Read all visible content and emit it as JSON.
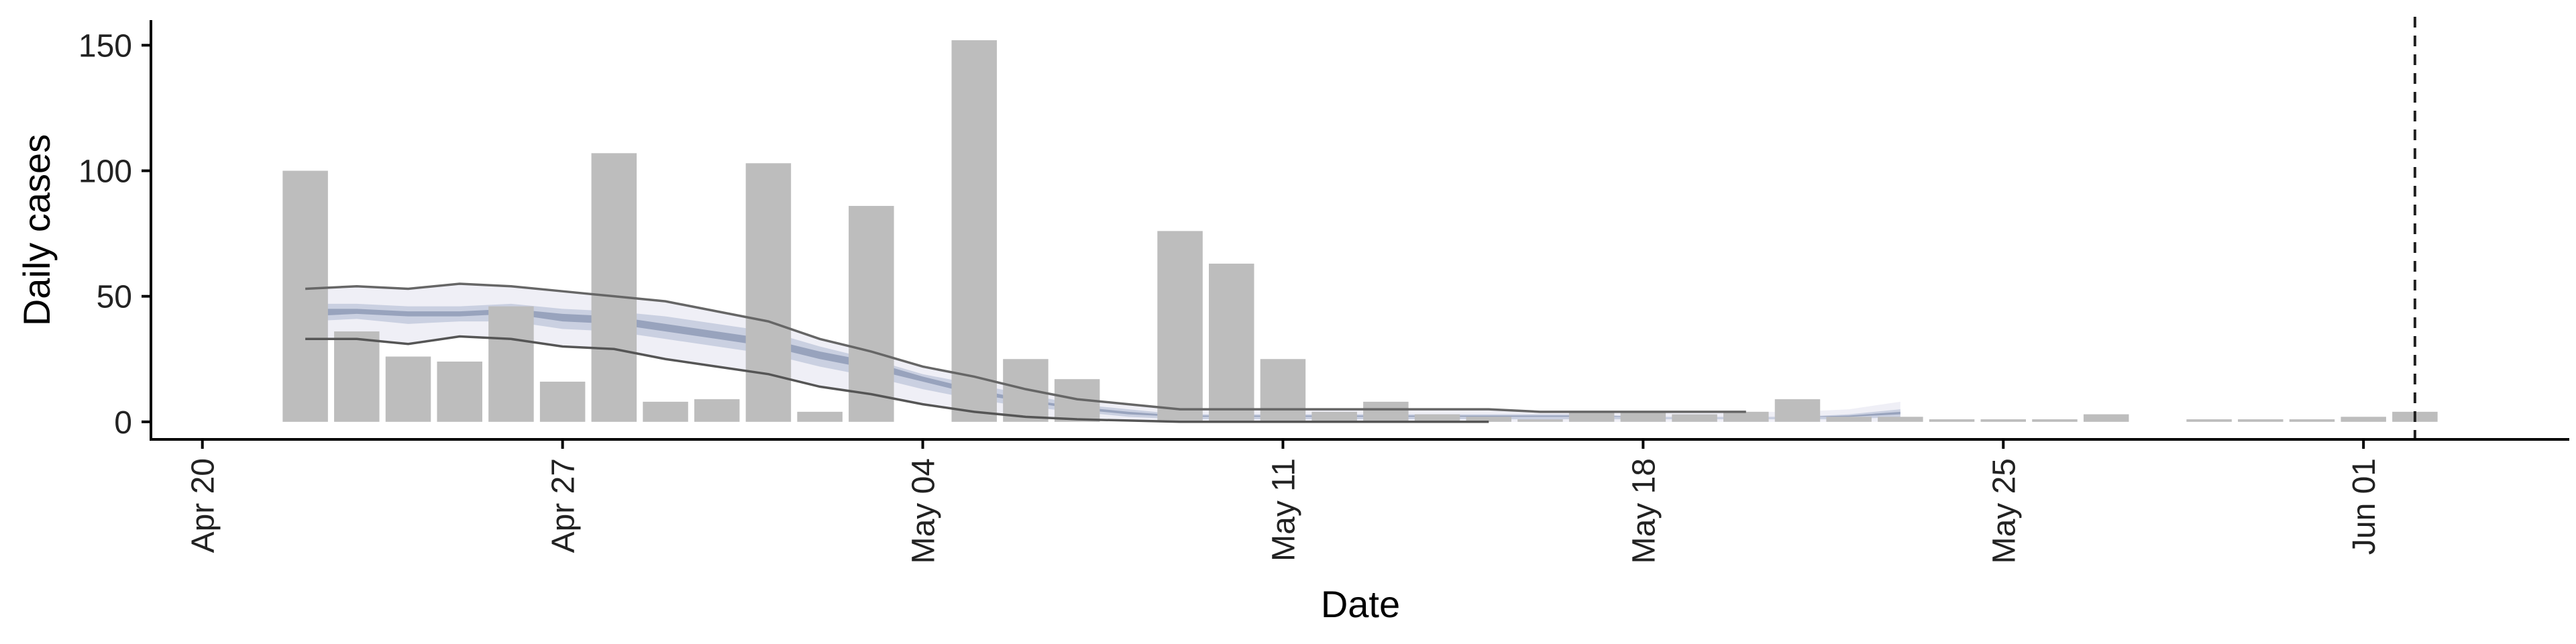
{
  "chart_data": {
    "type": "bar",
    "title": "",
    "xlabel": "Date",
    "ylabel": "Daily cases",
    "xlim": [
      "2020-04-19",
      "2020-06-05"
    ],
    "ylim": [
      -7,
      160
    ],
    "x_ticks": [
      {
        "date": "2020-04-20",
        "label": "Apr 20"
      },
      {
        "date": "2020-04-27",
        "label": "Apr 27"
      },
      {
        "date": "2020-05-04",
        "label": "May 04"
      },
      {
        "date": "2020-05-11",
        "label": "May 11"
      },
      {
        "date": "2020-05-18",
        "label": "May 18"
      },
      {
        "date": "2020-05-25",
        "label": "May 25"
      },
      {
        "date": "2020-06-01",
        "label": "Jun 01"
      }
    ],
    "y_ticks": [
      0,
      50,
      100,
      150
    ],
    "bars": {
      "color": "#bdbdbd",
      "dates": [
        "2020-04-22",
        "2020-04-23",
        "2020-04-24",
        "2020-04-25",
        "2020-04-26",
        "2020-04-27",
        "2020-04-28",
        "2020-04-29",
        "2020-04-30",
        "2020-05-01",
        "2020-05-02",
        "2020-05-03",
        "2020-05-04",
        "2020-05-05",
        "2020-05-06",
        "2020-05-07",
        "2020-05-08",
        "2020-05-09",
        "2020-05-10",
        "2020-05-11",
        "2020-05-12",
        "2020-05-13",
        "2020-05-14",
        "2020-05-15",
        "2020-05-16",
        "2020-05-17",
        "2020-05-18",
        "2020-05-19",
        "2020-05-20",
        "2020-05-21",
        "2020-05-22",
        "2020-05-23",
        "2020-05-24",
        "2020-05-25",
        "2020-05-26",
        "2020-05-27",
        "2020-05-28",
        "2020-05-29",
        "2020-05-30",
        "2020-05-31",
        "2020-06-01",
        "2020-06-02"
      ],
      "values": [
        100,
        36,
        26,
        24,
        46,
        16,
        107,
        8,
        9,
        103,
        4,
        86,
        0,
        152,
        25,
        17,
        0,
        76,
        63,
        25,
        4,
        8,
        3,
        2,
        1,
        4,
        4,
        3,
        4,
        9,
        2,
        2,
        1,
        1,
        1,
        3,
        0,
        1,
        1,
        1,
        2,
        4
      ]
    },
    "series": [
      {
        "kind": "ribbon",
        "color": "#ececf4",
        "dates": [
          "2020-04-22",
          "2020-04-23",
          "2020-04-24",
          "2020-04-25",
          "2020-04-26",
          "2020-04-27",
          "2020-04-28",
          "2020-04-29",
          "2020-04-30",
          "2020-05-01",
          "2020-05-02",
          "2020-05-03",
          "2020-05-04",
          "2020-05-05",
          "2020-05-06",
          "2020-05-07",
          "2020-05-08",
          "2020-05-09",
          "2020-05-10",
          "2020-05-11",
          "2020-05-12",
          "2020-05-13",
          "2020-05-14",
          "2020-05-15",
          "2020-05-16",
          "2020-05-17",
          "2020-05-18",
          "2020-05-19",
          "2020-05-20",
          "2020-05-21",
          "2020-05-22",
          "2020-05-23"
        ],
        "lower": [
          33,
          33,
          31,
          34,
          33,
          30,
          29,
          25,
          22,
          19,
          14,
          11,
          7,
          4,
          2,
          1,
          0.5,
          0,
          0,
          0,
          0,
          0,
          0,
          0,
          0,
          0,
          0,
          0,
          0,
          0,
          0,
          0
        ],
        "upper": [
          53,
          54,
          53,
          55,
          54,
          52,
          50,
          48,
          44,
          40,
          33,
          28,
          22,
          18,
          13,
          9,
          7,
          5,
          5,
          5,
          5,
          5,
          5,
          5,
          4,
          4,
          4,
          4,
          4,
          4,
          5,
          8
        ]
      },
      {
        "kind": "ribbon",
        "color": "#c3cadd",
        "dates": [
          "2020-04-22",
          "2020-04-23",
          "2020-04-24",
          "2020-04-25",
          "2020-04-26",
          "2020-04-27",
          "2020-04-28",
          "2020-04-29",
          "2020-04-30",
          "2020-05-01",
          "2020-05-02",
          "2020-05-03",
          "2020-05-04",
          "2020-05-05",
          "2020-05-06",
          "2020-05-07",
          "2020-05-08",
          "2020-05-09",
          "2020-05-10",
          "2020-05-11",
          "2020-05-12",
          "2020-05-13",
          "2020-05-14",
          "2020-05-15",
          "2020-05-16",
          "2020-05-17",
          "2020-05-18",
          "2020-05-19",
          "2020-05-20",
          "2020-05-21",
          "2020-05-22",
          "2020-05-23"
        ],
        "lower": [
          40,
          41,
          39,
          40,
          40,
          37,
          36,
          33,
          30,
          27,
          22,
          18,
          13,
          9,
          6,
          4,
          2,
          1,
          1,
          1,
          1,
          1,
          1,
          1,
          1,
          1,
          1,
          1,
          1,
          1,
          1,
          2
        ],
        "upper": [
          47,
          47,
          46,
          46,
          47,
          45,
          44,
          42,
          39,
          36,
          30,
          25,
          19,
          15,
          11,
          7,
          5,
          3,
          3,
          3,
          3,
          3,
          3,
          3,
          3,
          3,
          2,
          2,
          2,
          2,
          3,
          5
        ]
      },
      {
        "kind": "ribbon",
        "color": "#8f9bb6",
        "dates": [
          "2020-04-22",
          "2020-04-23",
          "2020-04-24",
          "2020-04-25",
          "2020-04-26",
          "2020-04-27",
          "2020-04-28",
          "2020-04-29",
          "2020-04-30",
          "2020-05-01",
          "2020-05-02",
          "2020-05-03",
          "2020-05-04",
          "2020-05-05",
          "2020-05-06",
          "2020-05-07",
          "2020-05-08",
          "2020-05-09",
          "2020-05-10",
          "2020-05-11",
          "2020-05-12",
          "2020-05-13",
          "2020-05-14",
          "2020-05-15",
          "2020-05-16",
          "2020-05-17",
          "2020-05-18",
          "2020-05-19",
          "2020-05-20",
          "2020-05-21",
          "2020-05-22",
          "2020-05-23"
        ],
        "lower": [
          42,
          43,
          42,
          42,
          43,
          40,
          39,
          36,
          33,
          30,
          25,
          21,
          16,
          11,
          8,
          5,
          3,
          2,
          2,
          2,
          2,
          2,
          2,
          2,
          2,
          2,
          2,
          2,
          2,
          2,
          2,
          3
        ],
        "upper": [
          45,
          45,
          44,
          44,
          45,
          43,
          42,
          39,
          36,
          33,
          28,
          24,
          18,
          13,
          9,
          6,
          4,
          2.5,
          2.5,
          2.5,
          2.5,
          2.5,
          2.5,
          2.5,
          2.5,
          2.5,
          2,
          2,
          2,
          2,
          2.5,
          4
        ]
      },
      {
        "kind": "line",
        "color": "#666666",
        "dates": [
          "2020-04-22",
          "2020-04-23",
          "2020-04-24",
          "2020-04-25",
          "2020-04-26",
          "2020-04-27",
          "2020-04-28",
          "2020-04-29",
          "2020-04-30",
          "2020-05-01",
          "2020-05-02",
          "2020-05-03",
          "2020-05-04",
          "2020-05-05",
          "2020-05-06",
          "2020-05-07",
          "2020-05-08",
          "2020-05-09",
          "2020-05-10",
          "2020-05-11",
          "2020-05-12",
          "2020-05-13",
          "2020-05-14",
          "2020-05-15",
          "2020-05-16",
          "2020-05-17",
          "2020-05-18",
          "2020-05-19",
          "2020-05-20"
        ],
        "values": [
          53,
          54,
          53,
          55,
          54,
          52,
          50,
          48,
          44,
          40,
          33,
          28,
          22,
          18,
          13,
          9,
          7,
          5,
          5,
          5,
          5,
          5,
          5,
          5,
          4,
          4,
          4,
          4,
          4
        ]
      },
      {
        "kind": "line",
        "color": "#555555",
        "dates": [
          "2020-04-22",
          "2020-04-23",
          "2020-04-24",
          "2020-04-25",
          "2020-04-26",
          "2020-04-27",
          "2020-04-28",
          "2020-04-29",
          "2020-04-30",
          "2020-05-01",
          "2020-05-02",
          "2020-05-03",
          "2020-05-04",
          "2020-05-05",
          "2020-05-06",
          "2020-05-07",
          "2020-05-08",
          "2020-05-09",
          "2020-05-10",
          "2020-05-11",
          "2020-05-12",
          "2020-05-13",
          "2020-05-14",
          "2020-05-15"
        ],
        "values": [
          33,
          33,
          31,
          34,
          33,
          30,
          29,
          25,
          22,
          19,
          14,
          11,
          7,
          4,
          2,
          1,
          0.5,
          0,
          0,
          0,
          0,
          0,
          0,
          0
        ]
      }
    ],
    "vline": {
      "date": "2020-06-02",
      "style": "dashed",
      "color": "#222222"
    },
    "grid": false,
    "legend": "none"
  }
}
